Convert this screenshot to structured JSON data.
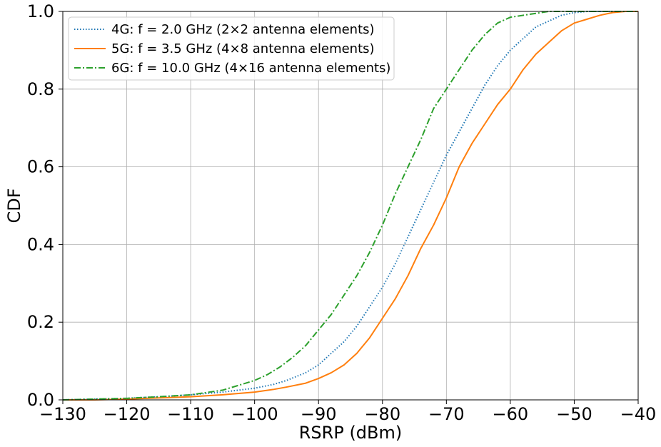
{
  "chart_data": {
    "type": "line",
    "title": "",
    "xlabel": "RSRP (dBm)",
    "ylabel": "CDF",
    "xlim": [
      -130,
      -40
    ],
    "ylim": [
      0,
      1
    ],
    "grid": true,
    "legend_position": "top-left",
    "x_ticks": [
      -130,
      -120,
      -110,
      -100,
      -90,
      -80,
      -70,
      -60,
      -50,
      -40
    ],
    "x_tick_labels": [
      "−130",
      "−120",
      "−110",
      "−100",
      "−90",
      "−80",
      "−70",
      "−60",
      "−50",
      "−40"
    ],
    "y_ticks": [
      0,
      0.2,
      0.4,
      0.6,
      0.8,
      1.0
    ],
    "y_tick_labels": [
      "0.0",
      "0.2",
      "0.4",
      "0.6",
      "0.8",
      "1.0"
    ],
    "series": [
      {
        "name": "4G: f = 2.0 GHz (2×2 antenna elements)",
        "color": "#1f77b4",
        "style": "dotted",
        "x": [
          -130,
          -125,
          -120,
          -115,
          -110,
          -105,
          -100,
          -97,
          -95,
          -92,
          -90,
          -88,
          -86,
          -84,
          -82,
          -80,
          -78,
          -76,
          -74,
          -72,
          -70,
          -68,
          -66,
          -64,
          -62,
          -60,
          -58,
          -56,
          -54,
          -52,
          -50,
          -48,
          -46,
          -44,
          -40
        ],
        "y": [
          0.0,
          0.002,
          0.004,
          0.008,
          0.013,
          0.02,
          0.03,
          0.04,
          0.05,
          0.07,
          0.09,
          0.12,
          0.15,
          0.19,
          0.24,
          0.29,
          0.35,
          0.42,
          0.49,
          0.56,
          0.63,
          0.69,
          0.75,
          0.81,
          0.86,
          0.9,
          0.93,
          0.96,
          0.975,
          0.99,
          0.997,
          1.0,
          1.0,
          1.0,
          1.0
        ]
      },
      {
        "name": "5G: f = 3.5 GHz (4×8 antenna elements)",
        "color": "#ff7f0e",
        "style": "solid",
        "x": [
          -130,
          -125,
          -120,
          -115,
          -110,
          -105,
          -100,
          -97,
          -95,
          -92,
          -90,
          -88,
          -86,
          -84,
          -82,
          -80,
          -78,
          -76,
          -74,
          -72,
          -70,
          -68,
          -66,
          -64,
          -62,
          -60,
          -58,
          -56,
          -54,
          -52,
          -50,
          -48,
          -46,
          -44,
          -42,
          -40
        ],
        "y": [
          0.0,
          0.0,
          0.002,
          0.005,
          0.008,
          0.013,
          0.02,
          0.027,
          0.033,
          0.043,
          0.055,
          0.07,
          0.09,
          0.12,
          0.16,
          0.21,
          0.26,
          0.32,
          0.39,
          0.45,
          0.52,
          0.6,
          0.66,
          0.71,
          0.76,
          0.8,
          0.85,
          0.89,
          0.92,
          0.95,
          0.97,
          0.98,
          0.99,
          0.997,
          1.0,
          1.0
        ]
      },
      {
        "name": "6G: f = 10.0 GHz (4×16 antenna elements)",
        "color": "#2ca02c",
        "style": "dashdot",
        "x": [
          -130,
          -125,
          -120,
          -115,
          -110,
          -105,
          -100,
          -98,
          -96,
          -94,
          -92,
          -90,
          -88,
          -86,
          -84,
          -82,
          -80,
          -78,
          -76,
          -74,
          -72,
          -70,
          -68,
          -66,
          -64,
          -62,
          -60,
          -58,
          -56,
          -54,
          -52,
          -50,
          -48,
          -40
        ],
        "y": [
          0.0,
          0.002,
          0.004,
          0.008,
          0.013,
          0.025,
          0.05,
          0.065,
          0.085,
          0.11,
          0.14,
          0.18,
          0.22,
          0.27,
          0.32,
          0.38,
          0.45,
          0.53,
          0.6,
          0.67,
          0.75,
          0.8,
          0.85,
          0.9,
          0.94,
          0.97,
          0.985,
          0.99,
          0.995,
          1.0,
          1.0,
          1.0,
          1.0,
          1.0
        ]
      }
    ]
  }
}
